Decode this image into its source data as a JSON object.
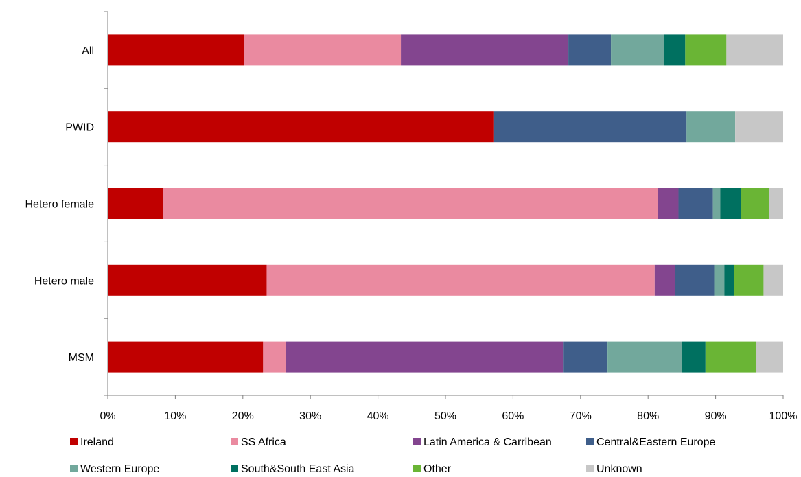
{
  "chart_data": {
    "type": "bar",
    "orientation": "horizontal",
    "stacked": "percent",
    "categories": [
      "All",
      "PWID",
      "Hetero female",
      "Hetero male",
      "MSM"
    ],
    "x_ticks": [
      "0%",
      "10%",
      "20%",
      "30%",
      "40%",
      "50%",
      "60%",
      "70%",
      "80%",
      "90%",
      "100%"
    ],
    "xlim": [
      0,
      100
    ],
    "grid": false,
    "legend_position": "bottom",
    "series": [
      {
        "name": "Ireland",
        "color": "#C00000",
        "values": [
          20.2,
          57.1,
          8.2,
          23.5,
          23.0
        ]
      },
      {
        "name": "SS Africa",
        "color": "#EA8AA0",
        "values": [
          23.2,
          0.0,
          73.3,
          57.4,
          3.4
        ]
      },
      {
        "name": "Latin America & Carribean",
        "color": "#83458F",
        "values": [
          24.8,
          0.0,
          3.0,
          3.0,
          41.0
        ]
      },
      {
        "name": "Central&Eastern Europe",
        "color": "#3F5E8A",
        "values": [
          6.3,
          28.6,
          5.1,
          5.8,
          6.6
        ]
      },
      {
        "name": "Western Europe",
        "color": "#72A89C",
        "values": [
          7.9,
          7.2,
          1.1,
          1.5,
          11.0
        ]
      },
      {
        "name": "South&South East Asia",
        "color": "#007060",
        "values": [
          3.1,
          0.0,
          3.1,
          1.4,
          3.5
        ]
      },
      {
        "name": "Other",
        "color": "#6AB535",
        "values": [
          6.1,
          0.0,
          4.1,
          4.4,
          7.5
        ]
      },
      {
        "name": "Unknown",
        "color": "#C7C7C7",
        "values": [
          8.4,
          7.1,
          2.1,
          2.9,
          4.0
        ]
      }
    ]
  }
}
